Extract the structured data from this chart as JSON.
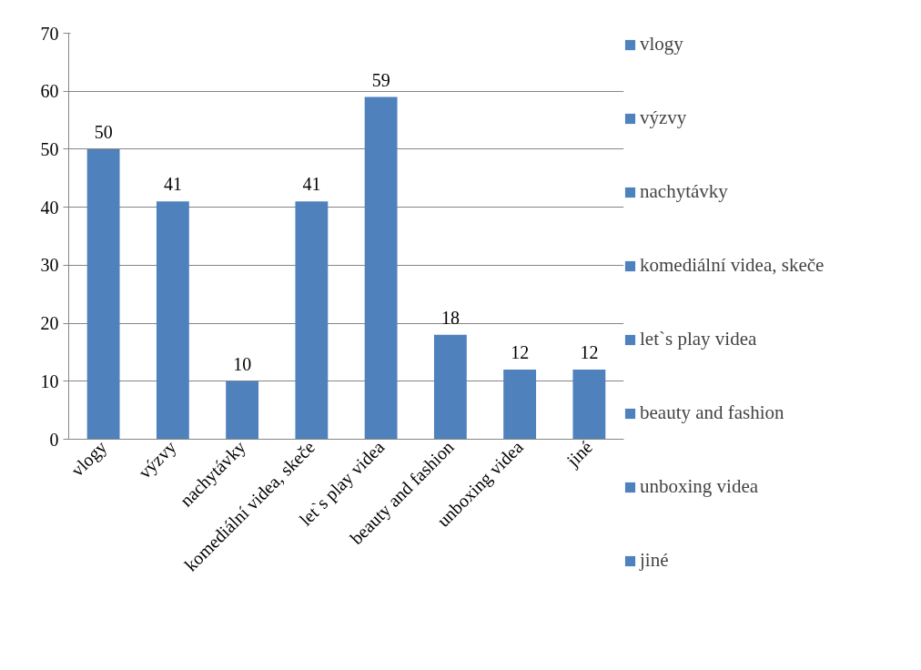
{
  "chart_data": {
    "type": "bar",
    "categories": [
      "vlogy",
      "výzvy",
      "nachytávky",
      "komediální videa, skeče",
      "let`s play videa",
      "beauty and fashion",
      "unboxing videa",
      "jiné"
    ],
    "series": [
      {
        "name": "vlogy",
        "color": "#4f81bd",
        "values": [
          50,
          null,
          null,
          null,
          null,
          null,
          null,
          null
        ]
      },
      {
        "name": "výzvy",
        "color": "#4f81bd",
        "values": [
          null,
          41,
          null,
          null,
          null,
          null,
          null,
          null
        ]
      },
      {
        "name": "nachytávky",
        "color": "#4f81bd",
        "values": [
          null,
          null,
          10,
          null,
          null,
          null,
          null,
          null
        ]
      },
      {
        "name": "komediální videa, skeče",
        "color": "#4f81bd",
        "values": [
          null,
          null,
          null,
          41,
          null,
          null,
          null,
          null
        ]
      },
      {
        "name": "let`s play videa",
        "color": "#4f81bd",
        "values": [
          null,
          null,
          null,
          null,
          59,
          null,
          null,
          null
        ]
      },
      {
        "name": "beauty and fashion",
        "color": "#4f81bd",
        "values": [
          null,
          null,
          null,
          null,
          null,
          18,
          null,
          null
        ]
      },
      {
        "name": "unboxing videa",
        "color": "#4f81bd",
        "values": [
          null,
          null,
          null,
          null,
          null,
          null,
          12,
          null
        ]
      },
      {
        "name": "jiné",
        "color": "#4f81bd",
        "values": [
          null,
          null,
          null,
          null,
          null,
          null,
          null,
          12
        ]
      }
    ],
    "ylim": [
      0,
      70
    ],
    "yticks": [
      0,
      10,
      20,
      30,
      40,
      50,
      60,
      70
    ],
    "grid": "y",
    "legend": "right",
    "data_labels": true
  }
}
